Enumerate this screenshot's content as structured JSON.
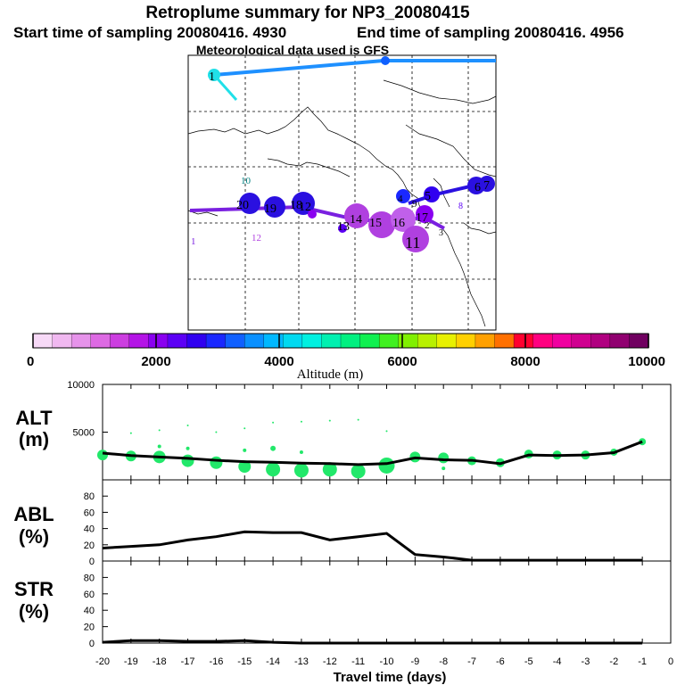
{
  "header": {
    "title": "Retroplume summary for NP3_20080415",
    "start_label": "Start time of sampling 20080416.  4930",
    "end_label": "End time of sampling 20080416.  4956",
    "met_label": "Meteorological data used is GFS"
  },
  "colorbar": {
    "title": "Altitude (m)",
    "ticks": [
      "0",
      "2000",
      "4000",
      "6000",
      "8000",
      "10000"
    ],
    "colors": [
      "#f7d9f7",
      "#f0b8f0",
      "#e693ea",
      "#dd6ae3",
      "#cc3ee0",
      "#b414e6",
      "#8a00f0",
      "#5c00f5",
      "#3000f0",
      "#1a28ff",
      "#1060ff",
      "#0a90ff",
      "#00b8ff",
      "#00d9f0",
      "#00f0e0",
      "#00f0b0",
      "#00f080",
      "#10f050",
      "#40f020",
      "#80f000",
      "#b8f000",
      "#e8f000",
      "#ffd000",
      "#ffa000",
      "#ff7000",
      "#ff0030",
      "#ff0080",
      "#f000a0",
      "#d00090",
      "#b00080",
      "#900070",
      "#700060"
    ]
  },
  "map": {
    "point_labels": [
      "1",
      "10",
      "20",
      "19",
      "18",
      "12",
      "13",
      "14",
      "15",
      "16",
      "17",
      "2",
      "3",
      "4",
      "5",
      "6",
      "7",
      "8",
      "9",
      "11",
      "12",
      "1"
    ],
    "colors": {
      "trajectory_a": "#1e90ff",
      "trajectory_b": "#7a20e0",
      "blue_points": "#2a10e0",
      "purple_points": "#b040e0",
      "cyan_start": "#20e0e8"
    }
  },
  "chart_data": [
    {
      "type": "scatter+line",
      "panel_label": "ALT (m)",
      "ylim": [
        0,
        10000
      ],
      "y_ticks": [
        "10000",
        "5000"
      ],
      "xlim": [
        -20,
        0
      ],
      "x": [
        -20,
        -19,
        -18,
        -17,
        -16,
        -15,
        -14,
        -13,
        -12,
        -11,
        -10,
        -9,
        -8,
        -7,
        -6,
        -5,
        -4,
        -3,
        -2,
        -1
      ],
      "series": [
        {
          "name": "median altitude",
          "values": [
            2800,
            2550,
            2400,
            2250,
            2050,
            1900,
            1850,
            1750,
            1700,
            1600,
            1700,
            2300,
            2100,
            2050,
            1700,
            2600,
            2550,
            2600,
            2850,
            4000
          ]
        }
      ],
      "scatter_points": [
        {
          "x": -20,
          "y": 2600,
          "size": 6
        },
        {
          "x": -19,
          "y": 2500,
          "size": 6
        },
        {
          "x": -18,
          "y": 2400,
          "size": 7
        },
        {
          "x": -17,
          "y": 2000,
          "size": 7
        },
        {
          "x": -16,
          "y": 1800,
          "size": 7
        },
        {
          "x": -15,
          "y": 1400,
          "size": 7
        },
        {
          "x": -14,
          "y": 1100,
          "size": 8
        },
        {
          "x": -13,
          "y": 1000,
          "size": 8
        },
        {
          "x": -12,
          "y": 1100,
          "size": 8
        },
        {
          "x": -11,
          "y": 900,
          "size": 8
        },
        {
          "x": -10,
          "y": 1500,
          "size": 9
        },
        {
          "x": -9,
          "y": 2400,
          "size": 6
        },
        {
          "x": -8,
          "y": 2300,
          "size": 6
        },
        {
          "x": -7,
          "y": 2000,
          "size": 5
        },
        {
          "x": -6,
          "y": 1800,
          "size": 5
        },
        {
          "x": -5,
          "y": 2700,
          "size": 5
        },
        {
          "x": -4,
          "y": 2600,
          "size": 5
        },
        {
          "x": -3,
          "y": 2600,
          "size": 5
        },
        {
          "x": -2,
          "y": 2900,
          "size": 4
        },
        {
          "x": -1,
          "y": 4000,
          "size": 4
        },
        {
          "x": -19,
          "y": 4900,
          "size": 1
        },
        {
          "x": -18,
          "y": 5200,
          "size": 1
        },
        {
          "x": -17,
          "y": 5700,
          "size": 1
        },
        {
          "x": -16,
          "y": 5000,
          "size": 1
        },
        {
          "x": -15,
          "y": 5400,
          "size": 1
        },
        {
          "x": -14,
          "y": 6000,
          "size": 1
        },
        {
          "x": -13,
          "y": 6100,
          "size": 1
        },
        {
          "x": -12,
          "y": 6200,
          "size": 1
        },
        {
          "x": -11,
          "y": 6300,
          "size": 1
        },
        {
          "x": -18,
          "y": 3500,
          "size": 2
        },
        {
          "x": -17,
          "y": 3300,
          "size": 2
        },
        {
          "x": -15,
          "y": 3100,
          "size": 2
        },
        {
          "x": -14,
          "y": 3300,
          "size": 3
        },
        {
          "x": -13,
          "y": 2900,
          "size": 2
        },
        {
          "x": -8,
          "y": 1200,
          "size": 2
        },
        {
          "x": -10,
          "y": 5100,
          "size": 1
        }
      ]
    },
    {
      "type": "line",
      "panel_label": "ABL (%)",
      "ylim": [
        0,
        100
      ],
      "y_ticks": [
        "80",
        "60",
        "40",
        "20",
        "0"
      ],
      "x": [
        -20,
        -19,
        -18,
        -17,
        -16,
        -15,
        -14,
        -13,
        -12,
        -11,
        -10,
        -9,
        -8,
        -7,
        -6,
        -5,
        -4,
        -3,
        -2,
        -1
      ],
      "values": [
        16,
        18,
        20,
        26,
        30,
        36,
        35,
        35,
        26,
        30,
        34,
        8,
        5,
        1,
        1,
        1,
        1,
        1,
        1,
        1
      ]
    },
    {
      "type": "line",
      "panel_label": "STR (%)",
      "ylim": [
        0,
        100
      ],
      "y_ticks": [
        "80",
        "60",
        "40",
        "20",
        "0"
      ],
      "x": [
        -20,
        -19,
        -18,
        -17,
        -16,
        -15,
        -14,
        -13,
        -12,
        -11,
        -10,
        -9,
        -8,
        -7,
        -6,
        -5,
        -4,
        -3,
        -2,
        -1
      ],
      "values": [
        1,
        3,
        3,
        2,
        2,
        3,
        1,
        0,
        0,
        0,
        0,
        0,
        0,
        0,
        0,
        0,
        0,
        0,
        0,
        0
      ]
    }
  ],
  "xaxis": {
    "label": "Travel time (days)",
    "tick_labels": [
      "-20",
      "-19",
      "-18",
      "-17",
      "-16",
      "-15",
      "-14",
      "-13",
      "-12",
      "-11",
      "-10",
      "-9",
      "-8",
      "-7",
      "-6",
      "-5",
      "-4",
      "-3",
      "-2",
      "-1",
      "0"
    ]
  }
}
